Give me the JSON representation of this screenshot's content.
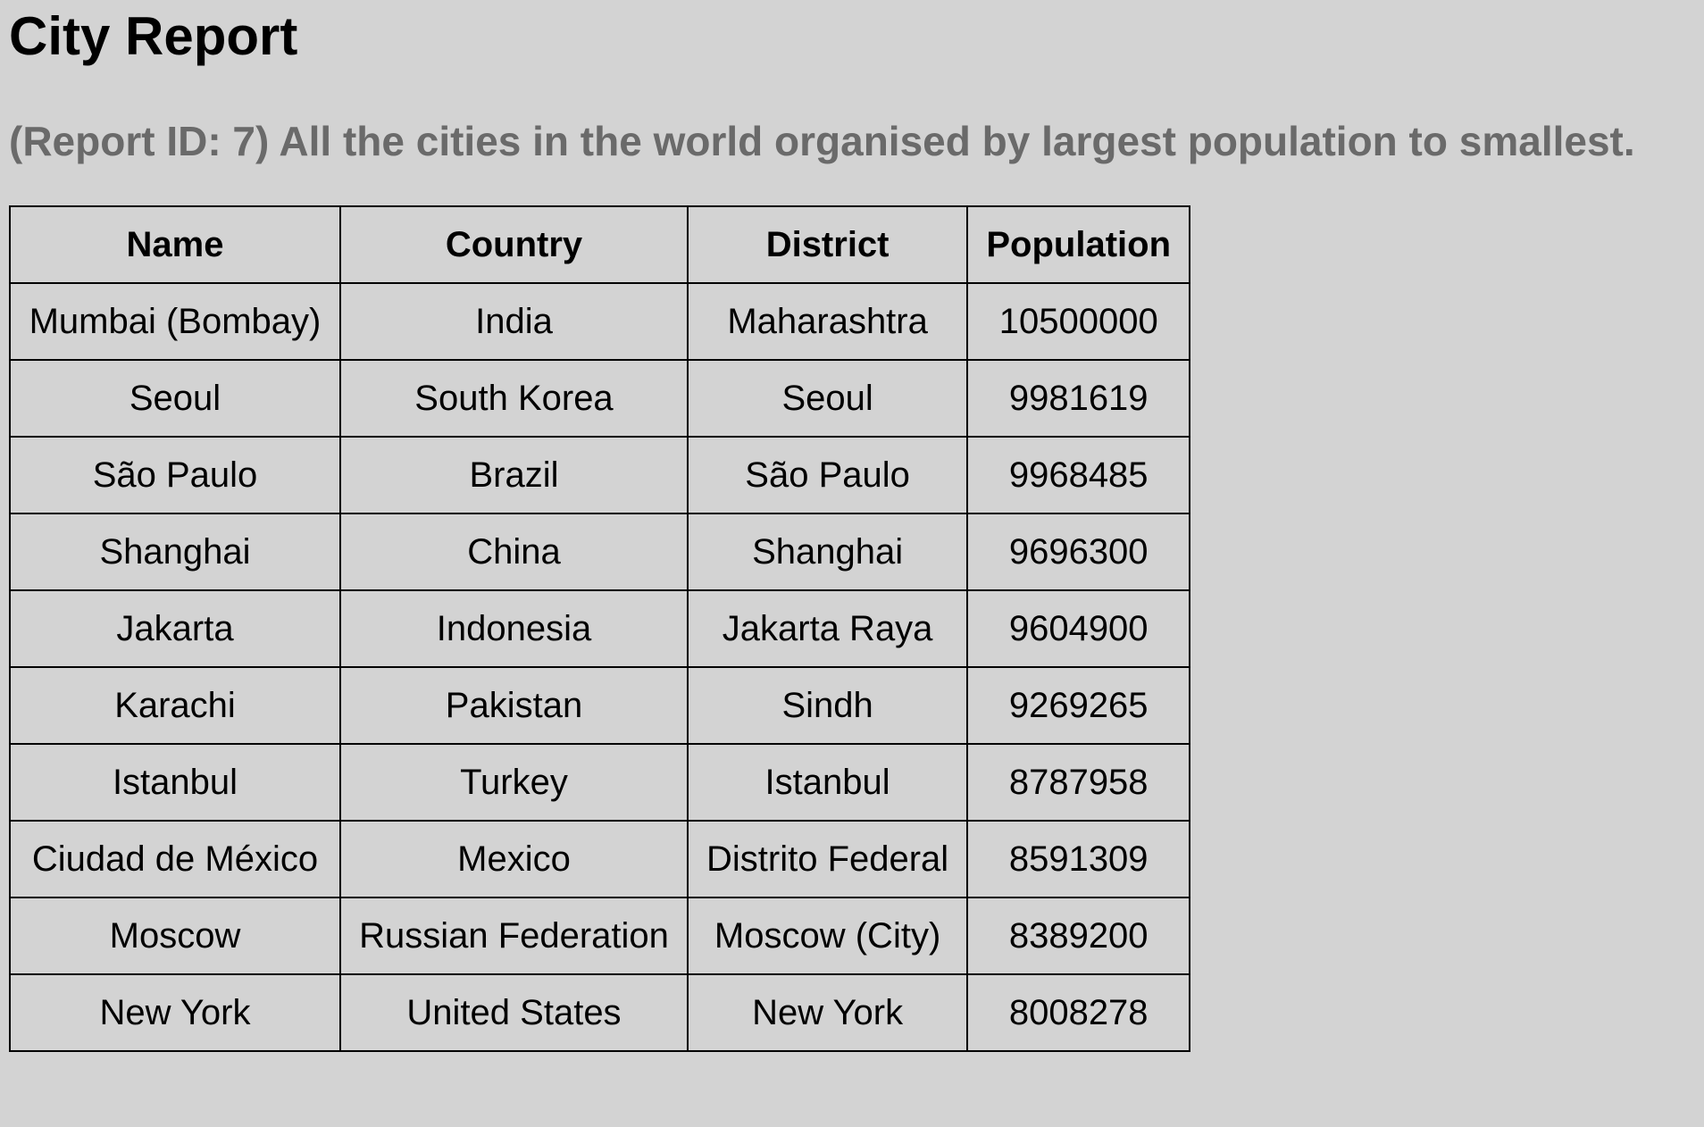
{
  "report": {
    "title": "City Report",
    "subtitle": "(Report ID: 7) All the cities in the world organised by largest population to smallest."
  },
  "table": {
    "headers": [
      "Name",
      "Country",
      "District",
      "Population"
    ],
    "rows": [
      [
        "Mumbai (Bombay)",
        "India",
        "Maharashtra",
        "10500000"
      ],
      [
        "Seoul",
        "South Korea",
        "Seoul",
        "9981619"
      ],
      [
        "São Paulo",
        "Brazil",
        "São Paulo",
        "9968485"
      ],
      [
        "Shanghai",
        "China",
        "Shanghai",
        "9696300"
      ],
      [
        "Jakarta",
        "Indonesia",
        "Jakarta Raya",
        "9604900"
      ],
      [
        "Karachi",
        "Pakistan",
        "Sindh",
        "9269265"
      ],
      [
        "Istanbul",
        "Turkey",
        "Istanbul",
        "8787958"
      ],
      [
        "Ciudad de México",
        "Mexico",
        "Distrito Federal",
        "8591309"
      ],
      [
        "Moscow",
        "Russian Federation",
        "Moscow (City)",
        "8389200"
      ],
      [
        "New York",
        "United States",
        "New York",
        "8008278"
      ]
    ]
  }
}
